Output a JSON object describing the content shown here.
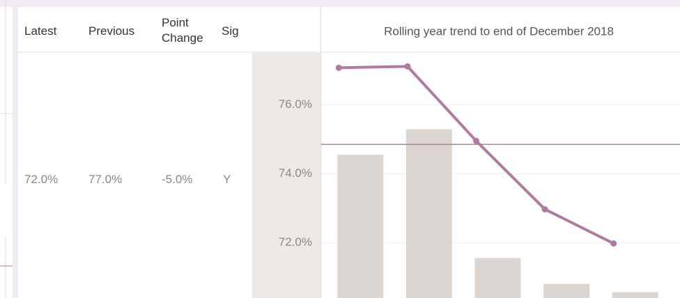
{
  "table": {
    "headers": [
      "Latest",
      "Previous",
      "Point Change",
      "Sig"
    ],
    "rows": [
      [
        "72.0%",
        "77.0%",
        "-5.0%",
        "Y"
      ]
    ]
  },
  "chart_data": {
    "type": "bar",
    "title": "Rolling year trend to end of December 2018",
    "categories": [
      null,
      null,
      null,
      null,
      null
    ],
    "series": [
      {
        "type": "bar",
        "color": "#dcd6d3",
        "values": [
          74.55,
          75.29,
          71.56,
          70.81,
          70.57
        ]
      },
      {
        "type": "line",
        "color": "#b07aa1",
        "values": [
          77.07,
          77.11,
          74.95,
          72.97,
          71.98
        ]
      }
    ],
    "reference_line": {
      "value": 74.85,
      "color": "#b07aa1"
    },
    "ylim": [
      70.4,
      77.5
    ],
    "yticks": [
      {
        "value": 72,
        "label": "72.0%"
      },
      {
        "value": 74,
        "label": "74.0%"
      },
      {
        "value": 76,
        "label": "76.0%"
      }
    ],
    "grid": true
  }
}
